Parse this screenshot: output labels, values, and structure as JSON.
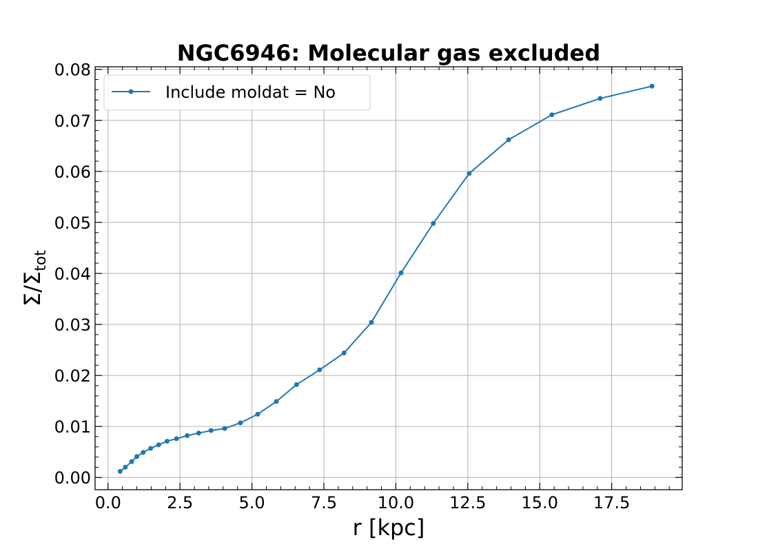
{
  "chart_data": {
    "type": "line",
    "title": "NGC6946: Molecular gas excluded",
    "xlabel": "r [kpc]",
    "ylabel": "Σ/Σ",
    "ylabel_sub": "tot",
    "xlim": [
      -0.45,
      19.95
    ],
    "ylim": [
      -0.0024,
      0.0805
    ],
    "xticks": [
      "0.0",
      "2.5",
      "5.0",
      "7.5",
      "10.0",
      "12.5",
      "15.0",
      "17.5"
    ],
    "xtick_values": [
      0,
      2.5,
      5,
      7.5,
      10,
      12.5,
      15,
      17.5
    ],
    "yticks": [
      "0.00",
      "0.01",
      "0.02",
      "0.03",
      "0.04",
      "0.05",
      "0.06",
      "0.07",
      "0.08"
    ],
    "ytick_values": [
      0,
      0.01,
      0.02,
      0.03,
      0.04,
      0.05,
      0.06,
      0.07,
      0.08
    ],
    "grid": true,
    "legend_position": "top-left",
    "color": "#1f77b4",
    "series": [
      {
        "name": "Include moldat = No",
        "x": [
          0.42,
          0.6,
          0.82,
          1.0,
          1.22,
          1.48,
          1.76,
          2.05,
          2.38,
          2.75,
          3.15,
          3.58,
          4.05,
          4.6,
          5.2,
          5.85,
          6.55,
          7.35,
          8.2,
          9.15,
          10.18,
          11.3,
          12.55,
          13.92,
          15.42,
          17.1,
          18.9
        ],
        "y": [
          0.0012,
          0.002,
          0.0031,
          0.0041,
          0.0049,
          0.0057,
          0.0064,
          0.0071,
          0.0076,
          0.0082,
          0.0087,
          0.0092,
          0.0096,
          0.0107,
          0.0124,
          0.0149,
          0.0182,
          0.0211,
          0.0244,
          0.0304,
          0.0401,
          0.0498,
          0.0596,
          0.0662,
          0.0711,
          0.0743,
          0.0767
        ]
      }
    ]
  }
}
